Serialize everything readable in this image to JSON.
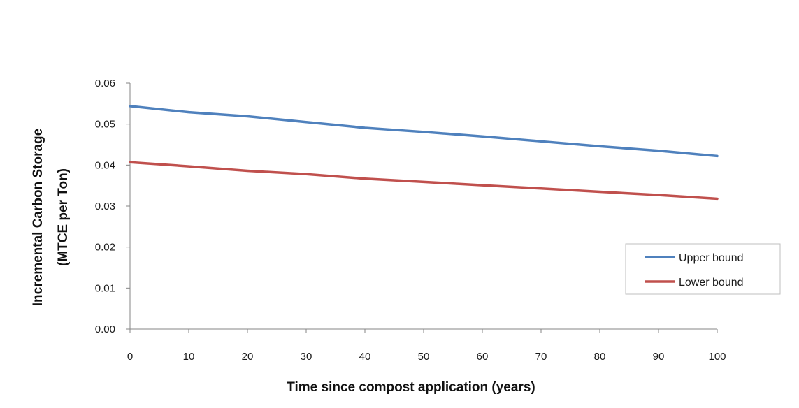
{
  "chart_data": {
    "type": "line",
    "title": "",
    "xlabel": "Time since compost application (years)",
    "ylabel_line1": "Incremental Carbon Storage",
    "ylabel_line2": "(MTCE per Ton)",
    "xlim": [
      0,
      100
    ],
    "ylim": [
      0,
      0.06
    ],
    "x_ticks": [
      "0",
      "10",
      "20",
      "30",
      "40",
      "50",
      "60",
      "70",
      "80",
      "90",
      "100"
    ],
    "y_ticks": [
      "0.00",
      "0.01",
      "0.02",
      "0.03",
      "0.04",
      "0.05",
      "0.06"
    ],
    "grid": false,
    "legend_position": "right",
    "x": [
      0,
      10,
      20,
      30,
      40,
      50,
      60,
      70,
      80,
      90,
      100
    ],
    "series": [
      {
        "name": "Upper bound",
        "color": "#4f81bd",
        "values": [
          0.0544,
          0.0529,
          0.0519,
          0.0505,
          0.0491,
          0.0481,
          0.047,
          0.0458,
          0.0446,
          0.0435,
          0.0422
        ]
      },
      {
        "name": "Lower bound",
        "color": "#c0504d",
        "values": [
          0.0407,
          0.0397,
          0.0386,
          0.0378,
          0.0367,
          0.0359,
          0.0351,
          0.0343,
          0.0335,
          0.0327,
          0.0318
        ]
      }
    ]
  }
}
